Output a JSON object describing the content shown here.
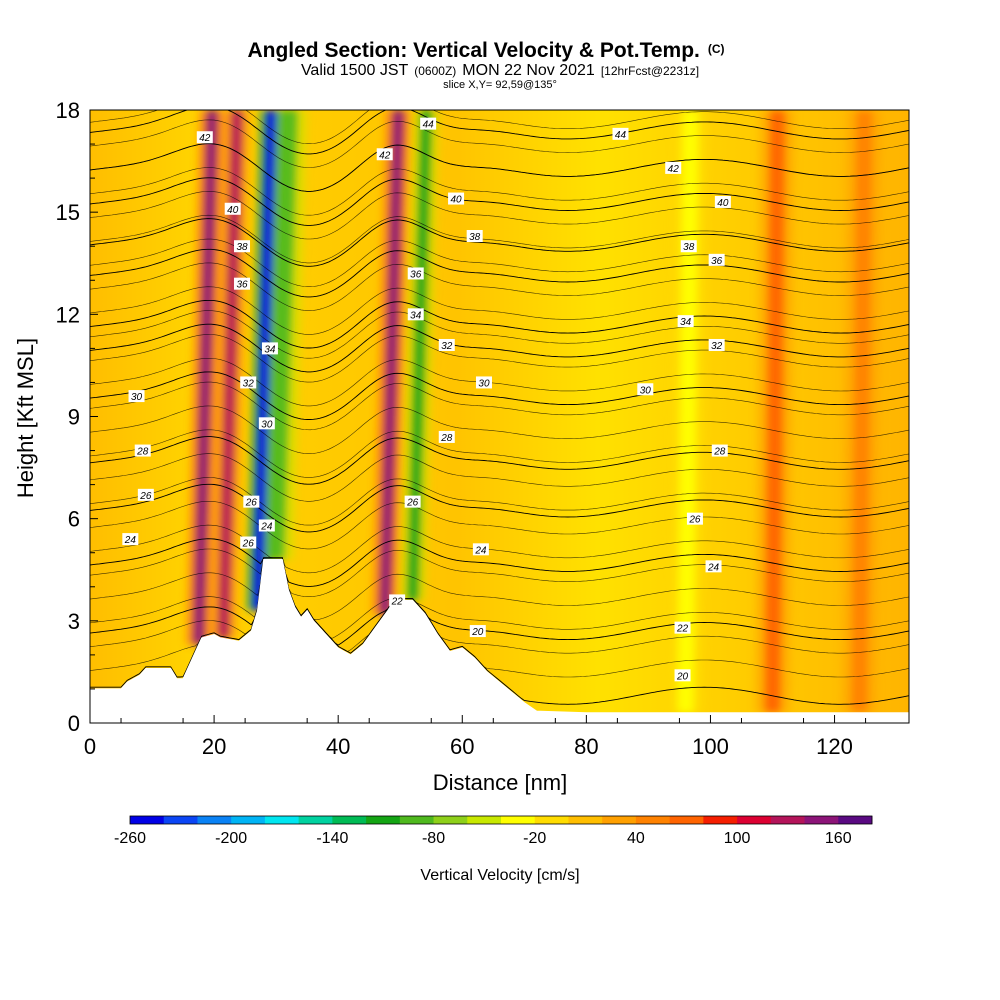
{
  "header": {
    "title": "Angled Section: Vertical Velocity & Pot.Temp.",
    "title_mark": "(C)",
    "valid_prefix": "Valid 1500 JST",
    "valid_zulu": "(0600Z)",
    "valid_date": "MON 22 Nov 2021",
    "forecast": "[12hrFcst@2231z]",
    "slice": "slice X,Y= 92,59@135°"
  },
  "chart_data": {
    "type": "heatmap",
    "xlabel": "Distance [nm]",
    "ylabel": "Height [Kft MSL]",
    "xlim": [
      0,
      132
    ],
    "ylim": [
      0,
      18
    ],
    "x_ticks": [
      "0",
      "20",
      "40",
      "60",
      "80",
      "100",
      "120"
    ],
    "y_ticks": [
      "0",
      "3",
      "6",
      "9",
      "12",
      "15",
      "18"
    ],
    "grid": false,
    "colorbar": {
      "label": "Vertical Velocity [cm/s]",
      "range": [
        -260,
        180
      ],
      "tick_labels": [
        "-260",
        "-200",
        "-140",
        "-80",
        "-20",
        "40",
        "100",
        "160"
      ],
      "colors": [
        "#0000e6",
        "#0b45f5",
        "#0a82f5",
        "#00b4f5",
        "#00e6f0",
        "#00d2a0",
        "#00bb55",
        "#14a514",
        "#4fb91e",
        "#8ed01a",
        "#c8e800",
        "#ffff00",
        "#ffdc00",
        "#ffbe00",
        "#ffa000",
        "#ff8200",
        "#ff6400",
        "#f51e00",
        "#dc0032",
        "#b4145a",
        "#8c1478",
        "#5a0a82"
      ]
    },
    "terrain_outline": [
      [
        0,
        1.0
      ],
      [
        5,
        1.0
      ],
      [
        6,
        1.2
      ],
      [
        8,
        1.4
      ],
      [
        9,
        1.6
      ],
      [
        13,
        1.6
      ],
      [
        14,
        1.3
      ],
      [
        15,
        1.3
      ],
      [
        16,
        1.7
      ],
      [
        17,
        2.1
      ],
      [
        18,
        2.5
      ],
      [
        20,
        2.6
      ],
      [
        21,
        2.5
      ],
      [
        24,
        2.4
      ],
      [
        26,
        2.7
      ],
      [
        27,
        3.3
      ],
      [
        28,
        4.8
      ],
      [
        31,
        4.8
      ],
      [
        32,
        3.9
      ],
      [
        33,
        3.4
      ],
      [
        34,
        3.1
      ],
      [
        35,
        3.3
      ],
      [
        36,
        3.0
      ],
      [
        38,
        2.6
      ],
      [
        40,
        2.2
      ],
      [
        42,
        2.0
      ],
      [
        44,
        2.3
      ],
      [
        46,
        2.8
      ],
      [
        48,
        3.3
      ],
      [
        49,
        3.6
      ],
      [
        52,
        3.6
      ],
      [
        54,
        3.2
      ],
      [
        56,
        2.6
      ],
      [
        58,
        2.1
      ],
      [
        60,
        2.2
      ],
      [
        62,
        1.9
      ],
      [
        64,
        1.5
      ],
      [
        66,
        1.2
      ],
      [
        68,
        0.9
      ],
      [
        70,
        0.6
      ],
      [
        72,
        0.35
      ],
      [
        80,
        0.3
      ],
      [
        100,
        0.3
      ],
      [
        130,
        0.3
      ],
      [
        132,
        0.3
      ]
    ],
    "theta_contours": [
      {
        "label": "20",
        "base": 0.8,
        "label_points": [
          [
            62.5,
            2.7
          ],
          [
            95.5,
            1.4
          ]
        ]
      },
      {
        "label": "22",
        "base": 2.7,
        "label_points": [
          [
            49.5,
            3.6
          ],
          [
            95.5,
            2.8
          ]
        ]
      },
      {
        "label": "24",
        "base": 4.7,
        "label_points": [
          [
            6.5,
            5.4
          ],
          [
            28.5,
            5.8
          ],
          [
            63,
            5.1
          ],
          [
            100.5,
            4.6
          ]
        ]
      },
      {
        "label": "26",
        "base": 6.3,
        "label_points": [
          [
            9,
            6.7
          ],
          [
            25.5,
            5.3
          ],
          [
            26,
            6.5
          ],
          [
            52,
            6.5
          ],
          [
            97.5,
            6.0
          ]
        ]
      },
      {
        "label": "28",
        "base": 7.7,
        "label_points": [
          [
            8.5,
            8.0
          ],
          [
            57.5,
            8.4
          ],
          [
            101.5,
            8.0
          ]
        ]
      },
      {
        "label": "30",
        "base": 9.6,
        "label_points": [
          [
            7.5,
            9.6
          ],
          [
            28.5,
            8.8
          ],
          [
            63.5,
            10.0
          ],
          [
            89.5,
            9.8
          ]
        ]
      },
      {
        "label": "32",
        "base": 11.0,
        "label_points": [
          [
            25.5,
            10.0
          ],
          [
            57.5,
            11.1
          ],
          [
            101,
            11.1
          ]
        ]
      },
      {
        "label": "34",
        "base": 11.7,
        "label_points": [
          [
            29,
            11.0
          ],
          [
            52.5,
            12.0
          ],
          [
            96,
            11.8
          ]
        ]
      },
      {
        "label": "36",
        "base": 13.2,
        "label_points": [
          [
            24.5,
            12.9
          ],
          [
            52.5,
            13.2
          ],
          [
            101,
            13.6
          ]
        ]
      },
      {
        "label": "38",
        "base": 14.1,
        "label_points": [
          [
            24.5,
            14.0
          ],
          [
            62,
            14.3
          ],
          [
            96.5,
            14.0
          ]
        ]
      },
      {
        "label": "40",
        "base": 15.3,
        "label_points": [
          [
            23,
            15.1
          ],
          [
            59,
            15.4
          ],
          [
            102,
            15.3
          ]
        ]
      },
      {
        "label": "42",
        "base": 16.3,
        "label_points": [
          [
            18.5,
            17.2
          ],
          [
            47.5,
            16.7
          ],
          [
            94,
            16.3
          ]
        ]
      },
      {
        "label": "44",
        "base": 17.4,
        "label_points": [
          [
            54.5,
            17.6
          ],
          [
            85.5,
            17.3
          ]
        ]
      }
    ],
    "vertical_velocity_bands": [
      {
        "x": 17.5,
        "value": 150,
        "note": "strong updraft"
      },
      {
        "x": 21.5,
        "value": 120
      },
      {
        "x": 27,
        "value": -250,
        "note": "strong downdraft"
      },
      {
        "x": 30,
        "value": -100
      },
      {
        "x": 47.5,
        "value": 140
      },
      {
        "x": 52,
        "value": -110
      },
      {
        "x": 96,
        "value": -40
      },
      {
        "x": 110,
        "value": 70
      },
      {
        "x": 124,
        "value": 55
      }
    ]
  }
}
